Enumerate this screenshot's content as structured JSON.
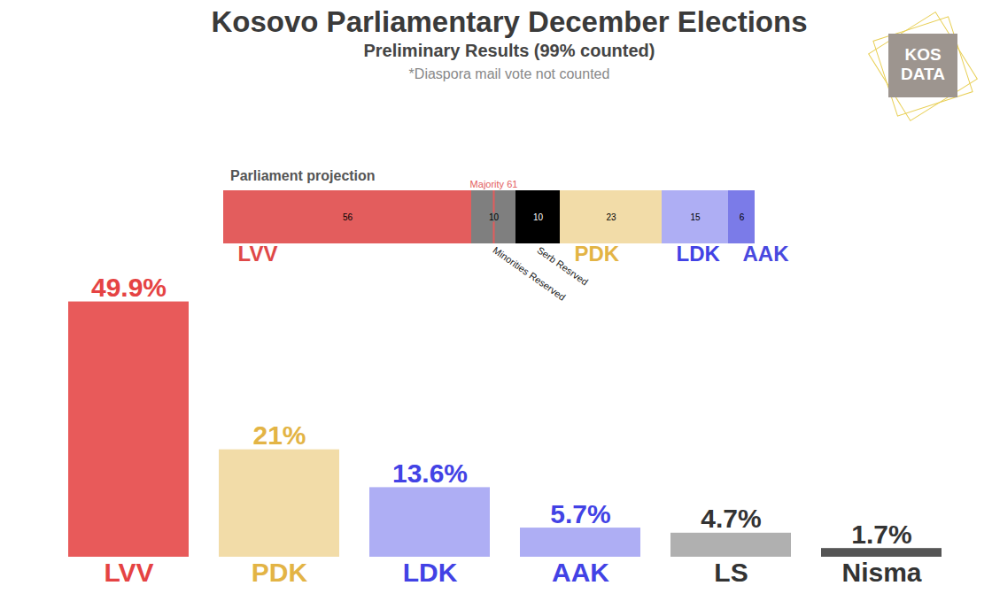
{
  "logo": {
    "lines": [
      "KOS",
      "DATA"
    ]
  },
  "chart_data": [
    {
      "type": "bar",
      "title": "Kosovo Parliamentary December Elections",
      "subtitle": "Preliminary Results (99% counted)",
      "note": "*Diaspora mail vote not counted",
      "categories": [
        "LVV",
        "PDK",
        "LDK",
        "AAK",
        "LS",
        "Nisma"
      ],
      "values": [
        49.9,
        21,
        13.6,
        5.7,
        4.7,
        1.7
      ],
      "value_labels": [
        "49.9%",
        "21%",
        "13.6%",
        "5.7%",
        "4.7%",
        "1.7%"
      ],
      "colors": [
        "#e85a5a",
        "#f2dca8",
        "#aeaef4",
        "#aeaef4",
        "#b0b0b0",
        "#555555"
      ],
      "ylim": [
        0,
        50
      ],
      "data_labels": true,
      "tick_labels": "x",
      "grid": false
    },
    {
      "type": "bar",
      "title": "Parliament projection",
      "orientation": "horizontal",
      "stacked": true,
      "series": [
        {
          "name": "LVV",
          "color": "#e35d5d",
          "values": [
            56
          ]
        },
        {
          "name": "Minorities Reserved",
          "color": "#7f7f7f",
          "values": [
            10
          ]
        },
        {
          "name": "Serb Resrved",
          "color": "#000000",
          "values": [
            10
          ]
        },
        {
          "name": "PDK",
          "color": "#f2dca8",
          "values": [
            23
          ]
        },
        {
          "name": "LDK",
          "color": "#aeaef4",
          "values": [
            15
          ]
        },
        {
          "name": "AAK",
          "color": "#7b7be8",
          "values": [
            6
          ]
        }
      ],
      "xlim": [
        0,
        120
      ],
      "data_labels": true,
      "tick_labels": false,
      "annotations": [
        {
          "text": "Majority 61",
          "value": 61
        }
      ]
    }
  ]
}
